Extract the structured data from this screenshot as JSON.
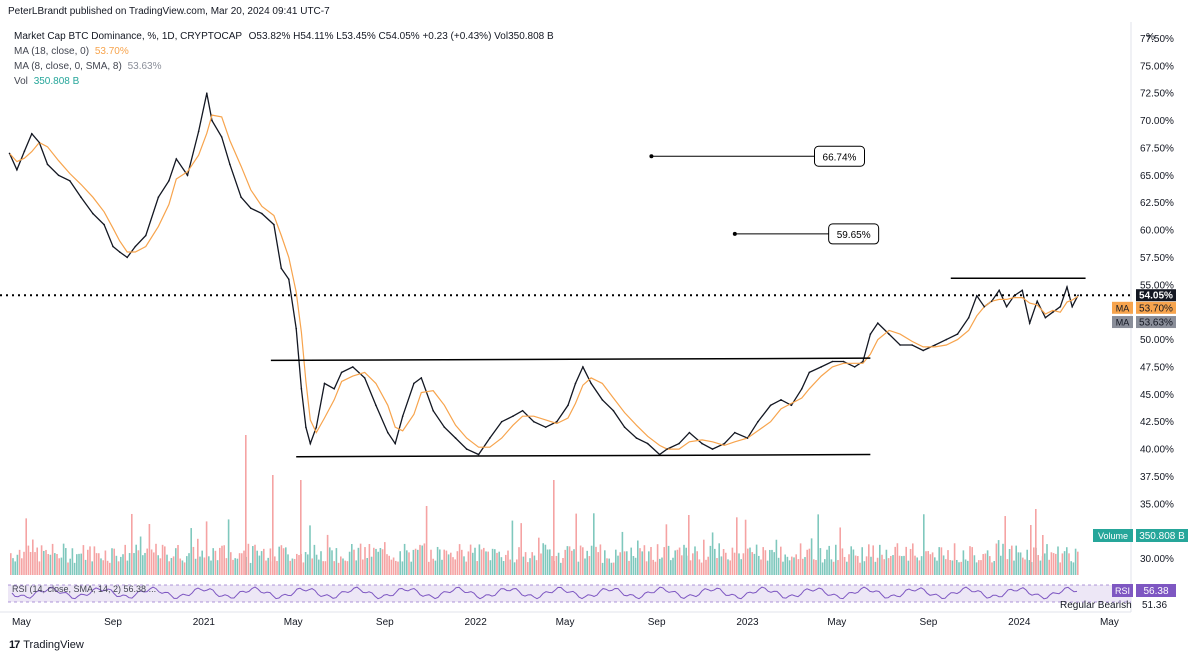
{
  "header": {
    "published": "PeterLBrandt published on TradingView.com, Mar 20, 2024 09:41 UTC-7"
  },
  "legend": {
    "symbol": "Market Cap BTC Dominance, %, 1D, CRYPTOCAP",
    "ohlc": "O53.82% H54.11% L53.45% C54.05% +0.23 (+0.43%) Vol350.808 B",
    "ma18_label": "MA (18, close, 0)",
    "ma18_value": "53.70%",
    "ma8_label": "MA (8, close, 0, SMA, 8)",
    "ma8_value": "53.63%",
    "vol_label": "Vol",
    "vol_value": "350.808 B"
  },
  "footer": {
    "logo": "TradingView",
    "logo_mark": "17"
  },
  "colors": {
    "price": "#131722",
    "ma": "#f7a44d",
    "vol_up": "#7fc8bd",
    "vol_down": "#f5a3a3",
    "rsi": "#7e57c2",
    "volume_badge": "#26a69a",
    "current_badge": "#131722"
  },
  "chart_data": {
    "type": "line",
    "title": "Market Cap BTC Dominance, %, 1D, CRYPTOCAP",
    "ylabel": "%",
    "ylim": [
      28.5,
      79
    ],
    "y_ticks": [
      "77.50%",
      "75.00%",
      "72.50%",
      "70.00%",
      "67.50%",
      "65.00%",
      "62.50%",
      "60.00%",
      "57.50%",
      "55.00%",
      "50.00%",
      "47.50%",
      "45.00%",
      "42.50%",
      "40.00%",
      "37.50%",
      "35.00%",
      "30.00%"
    ],
    "y_tick_values": [
      77.5,
      75,
      72.5,
      70,
      67.5,
      65,
      62.5,
      60,
      57.5,
      55,
      50,
      47.5,
      45,
      42.5,
      40,
      37.5,
      35,
      30
    ],
    "x_ticks": [
      "May",
      "Sep",
      "2021",
      "May",
      "Sep",
      "2022",
      "May",
      "Sep",
      "2023",
      "May",
      "Sep",
      "2024",
      "May"
    ],
    "x_tick_dates": [
      "2020-05-01",
      "2020-09-01",
      "2021-01-01",
      "2021-05-01",
      "2021-09-01",
      "2022-01-01",
      "2022-05-01",
      "2022-09-01",
      "2023-01-01",
      "2023-05-01",
      "2023-09-01",
      "2024-01-01",
      "2024-05-01"
    ],
    "x_range": [
      "2020-04-13",
      "2024-05-30"
    ],
    "series": [
      {
        "name": "Market Cap BTC Dominance",
        "points": [
          [
            "2020-04-15",
            67.0
          ],
          [
            "2020-04-25",
            65.5
          ],
          [
            "2020-05-05",
            67.2
          ],
          [
            "2020-05-15",
            68.8
          ],
          [
            "2020-05-25",
            68.0
          ],
          [
            "2020-06-05",
            66.0
          ],
          [
            "2020-06-20",
            65.0
          ],
          [
            "2020-07-05",
            64.5
          ],
          [
            "2020-07-20",
            63.0
          ],
          [
            "2020-08-05",
            61.5
          ],
          [
            "2020-08-20",
            60.5
          ],
          [
            "2020-09-01",
            58.5
          ],
          [
            "2020-09-10",
            58.0
          ],
          [
            "2020-09-20",
            57.5
          ],
          [
            "2020-10-01",
            58.5
          ],
          [
            "2020-10-15",
            59.5
          ],
          [
            "2020-11-01",
            63.0
          ],
          [
            "2020-11-15",
            64.5
          ],
          [
            "2020-11-25",
            66.5
          ],
          [
            "2020-12-10",
            65.0
          ],
          [
            "2020-12-25",
            69.0
          ],
          [
            "2021-01-05",
            72.5
          ],
          [
            "2021-01-12",
            70.0
          ],
          [
            "2021-01-25",
            68.5
          ],
          [
            "2021-02-05",
            66.0
          ],
          [
            "2021-02-20",
            63.0
          ],
          [
            "2021-03-05",
            62.0
          ],
          [
            "2021-03-20",
            61.5
          ],
          [
            "2021-04-05",
            60.5
          ],
          [
            "2021-04-15",
            56.5
          ],
          [
            "2021-04-25",
            55.5
          ],
          [
            "2021-05-05",
            51.0
          ],
          [
            "2021-05-12",
            45.5
          ],
          [
            "2021-05-18",
            42.0
          ],
          [
            "2021-05-24",
            40.5
          ],
          [
            "2021-06-01",
            42.0
          ],
          [
            "2021-06-12",
            46.0
          ],
          [
            "2021-06-25",
            45.5
          ],
          [
            "2021-07-05",
            47.0
          ],
          [
            "2021-07-20",
            47.5
          ],
          [
            "2021-08-05",
            46.5
          ],
          [
            "2021-08-20",
            44.0
          ],
          [
            "2021-09-05",
            41.5
          ],
          [
            "2021-09-15",
            40.5
          ],
          [
            "2021-09-25",
            43.0
          ],
          [
            "2021-10-10",
            46.0
          ],
          [
            "2021-10-20",
            46.5
          ],
          [
            "2021-11-05",
            43.5
          ],
          [
            "2021-11-20",
            42.0
          ],
          [
            "2021-12-05",
            41.0
          ],
          [
            "2021-12-20",
            40.0
          ],
          [
            "2022-01-05",
            39.5
          ],
          [
            "2022-01-20",
            41.0
          ],
          [
            "2022-02-05",
            42.5
          ],
          [
            "2022-02-20",
            43.0
          ],
          [
            "2022-03-05",
            43.5
          ],
          [
            "2022-03-20",
            42.5
          ],
          [
            "2022-04-05",
            42.0
          ],
          [
            "2022-04-20",
            42.5
          ],
          [
            "2022-05-05",
            44.0
          ],
          [
            "2022-05-15",
            46.0
          ],
          [
            "2022-05-25",
            47.5
          ],
          [
            "2022-06-05",
            46.0
          ],
          [
            "2022-06-20",
            44.5
          ],
          [
            "2022-07-05",
            43.5
          ],
          [
            "2022-07-20",
            42.0
          ],
          [
            "2022-08-05",
            41.0
          ],
          [
            "2022-08-20",
            40.5
          ],
          [
            "2022-09-05",
            39.5
          ],
          [
            "2022-09-15",
            40.0
          ],
          [
            "2022-10-01",
            40.5
          ],
          [
            "2022-10-15",
            41.5
          ],
          [
            "2022-11-01",
            40.5
          ],
          [
            "2022-11-15",
            40.0
          ],
          [
            "2022-12-01",
            40.5
          ],
          [
            "2022-12-15",
            41.5
          ],
          [
            "2023-01-01",
            41.0
          ],
          [
            "2023-01-15",
            42.5
          ],
          [
            "2023-02-01",
            44.0
          ],
          [
            "2023-02-15",
            44.5
          ],
          [
            "2023-03-01",
            44.0
          ],
          [
            "2023-03-15",
            45.5
          ],
          [
            "2023-03-25",
            47.0
          ],
          [
            "2023-04-10",
            47.5
          ],
          [
            "2023-04-25",
            48.0
          ],
          [
            "2023-05-10",
            48.0
          ],
          [
            "2023-05-25",
            47.5
          ],
          [
            "2023-06-05",
            48.0
          ],
          [
            "2023-06-15",
            50.5
          ],
          [
            "2023-06-25",
            51.5
          ],
          [
            "2023-07-10",
            50.5
          ],
          [
            "2023-07-25",
            49.5
          ],
          [
            "2023-08-10",
            49.5
          ],
          [
            "2023-08-25",
            49.0
          ],
          [
            "2023-09-10",
            49.5
          ],
          [
            "2023-09-25",
            50.0
          ],
          [
            "2023-10-10",
            50.5
          ],
          [
            "2023-10-25",
            52.0
          ],
          [
            "2023-11-05",
            54.0
          ],
          [
            "2023-11-15",
            53.0
          ],
          [
            "2023-11-25",
            53.5
          ],
          [
            "2023-12-05",
            54.5
          ],
          [
            "2023-12-15",
            53.0
          ],
          [
            "2023-12-25",
            54.0
          ],
          [
            "2024-01-05",
            54.5
          ],
          [
            "2024-01-15",
            51.5
          ],
          [
            "2024-01-25",
            53.5
          ],
          [
            "2024-02-05",
            52.0
          ],
          [
            "2024-02-15",
            52.5
          ],
          [
            "2024-02-25",
            53.0
          ],
          [
            "2024-03-05",
            54.8
          ],
          [
            "2024-03-12",
            53.0
          ],
          [
            "2024-03-20",
            54.05
          ]
        ]
      }
    ],
    "annotations": [
      {
        "text": "66.74%",
        "from": [
          "2022-08-25",
          66.74
        ],
        "to": [
          "2023-04-01",
          66.74
        ]
      },
      {
        "text": "59.65%",
        "from": [
          "2022-12-15",
          59.65
        ],
        "to": [
          "2023-04-20",
          59.65
        ]
      }
    ],
    "trendlines": [
      {
        "from": [
          "2021-04-01",
          48.1
        ],
        "to": [
          "2023-06-15",
          48.3
        ]
      },
      {
        "from": [
          "2021-05-05",
          39.3
        ],
        "to": [
          "2023-06-15",
          39.5
        ]
      },
      {
        "from": [
          "2023-10-01",
          55.6
        ],
        "to": [
          "2024-03-30",
          55.6
        ]
      }
    ],
    "current_line": 54.05,
    "price_badges": [
      {
        "label": "",
        "value": "54.05%",
        "color": "#131722",
        "y": 54.05
      },
      {
        "label": "MA",
        "value": "53.70%",
        "color": "#f7a44d",
        "y": 52.9
      },
      {
        "label": "MA",
        "value": "53.63%",
        "color": "#8a8e99",
        "y": 51.6
      }
    ],
    "volume": {
      "label": "Volume",
      "value": "350.808 B"
    },
    "rsi": {
      "label": "RSI (14, close, SMA, 14, 2) 56.38 ...",
      "badge": "RSI",
      "value": "56.38",
      "note": "Regular Bearish",
      "second_value": "51.36"
    }
  }
}
